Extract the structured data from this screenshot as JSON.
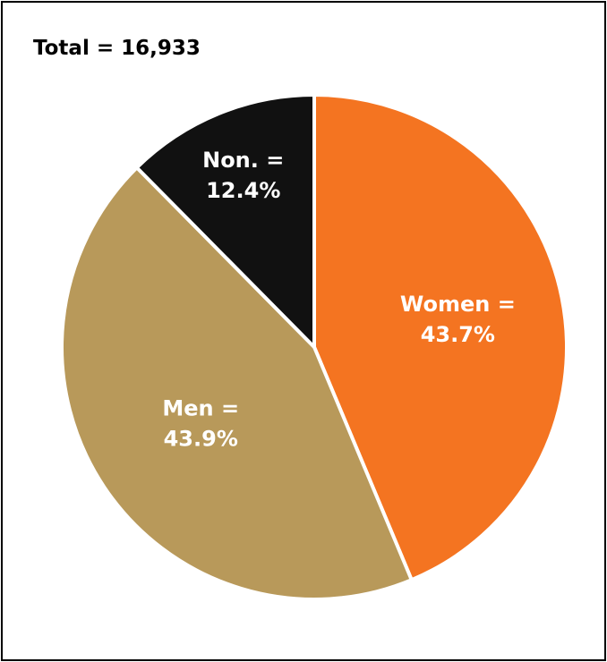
{
  "chart_data": {
    "type": "pie",
    "title": "Total = 16,933",
    "slices": [
      {
        "name": "Women",
        "value": 43.7,
        "label_line1": "Women =",
        "label_line2": "43.7%",
        "color": "#F47421"
      },
      {
        "name": "Men",
        "value": 43.9,
        "label_line1": "Men =",
        "label_line2": "43.9%",
        "color": "#B8995A"
      },
      {
        "name": "Non.",
        "value": 12.4,
        "label_line1": "Non. =",
        "label_line2": "12.4%",
        "color": "#111111"
      }
    ],
    "start_angle": "top (12 o'clock), clockwise"
  }
}
